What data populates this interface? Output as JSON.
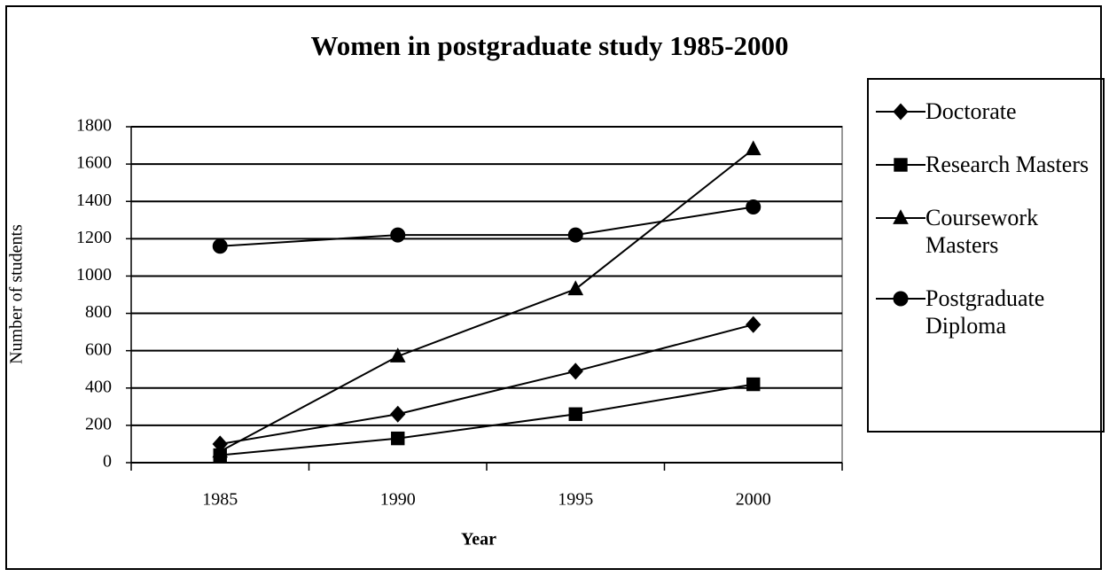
{
  "chart_data": {
    "type": "line",
    "title": "Women in postgraduate study 1985-2000",
    "x_label": "Year",
    "y_label": "Number of students",
    "categories": [
      "1985",
      "1990",
      "1995",
      "2000"
    ],
    "series": [
      {
        "name": "Doctorate",
        "color": "#000000",
        "marker": "diamond",
        "values": [
          100,
          260,
          490,
          740
        ]
      },
      {
        "name": "Research Masters",
        "color": "#000000",
        "marker": "square",
        "values": [
          40,
          130,
          260,
          420
        ]
      },
      {
        "name": "Coursework Masters",
        "color": "#000000",
        "marker": "triangle",
        "values": [
          60,
          570,
          930,
          1680
        ]
      },
      {
        "name": "Postgraduate Diploma",
        "color": "#000000",
        "marker": "circle",
        "values": [
          1160,
          1220,
          1220,
          1370
        ]
      }
    ],
    "ylim": [
      0,
      1800
    ],
    "yticks": [
      0,
      200,
      400,
      600,
      800,
      1000,
      1200,
      1400,
      1600,
      1800
    ],
    "grid": true,
    "legend": "right"
  }
}
